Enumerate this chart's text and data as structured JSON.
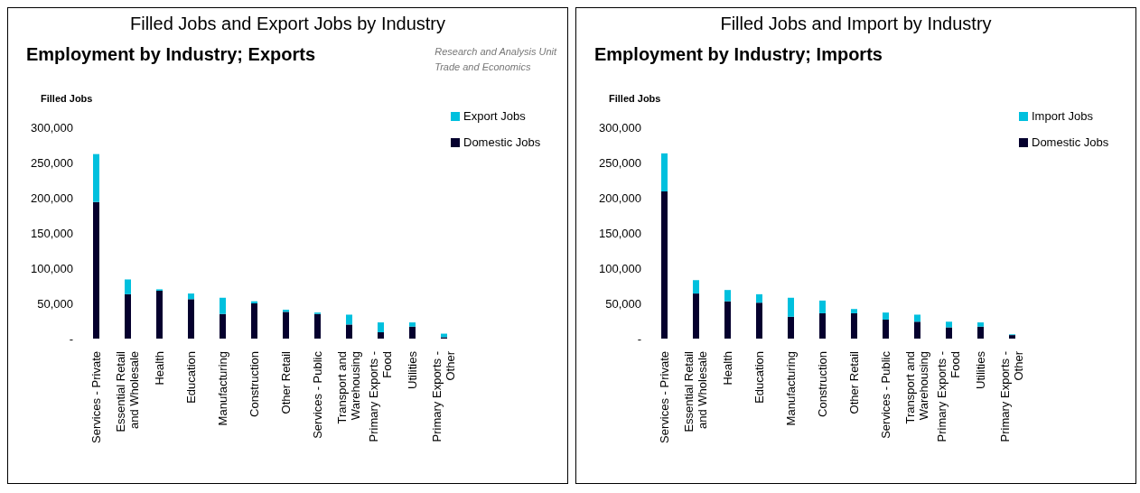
{
  "chart_data": [
    {
      "type": "bar",
      "title": "Filled Jobs and Export Jobs by Industry",
      "subtitle": "Employment by Industry; Exports",
      "annotations": [
        "Research and Analysis Unit\nTrade and Economics"
      ],
      "ylabel": "Filled Jobs",
      "stacked": true,
      "legend": "top right",
      "grid": false,
      "categories": [
        "Services - Private",
        "Essential Retail and Wholesale",
        "Health",
        "Education",
        "Manufacturing",
        "Construction",
        "Other Retail",
        "Services - Public",
        "Transport and Warehousing",
        "Primary Exports - Food",
        "Utilities",
        "Primary Exports - Other"
      ],
      "series": [
        {
          "name": "Domestic Jobs",
          "color": "#05002e",
          "values": [
            194000,
            63000,
            68000,
            56000,
            35000,
            50000,
            38000,
            35000,
            20000,
            9000,
            17000,
            2000
          ]
        },
        {
          "name": "Export Jobs",
          "color": "#00c0de",
          "values": [
            68000,
            21000,
            2000,
            8000,
            23000,
            3000,
            3000,
            2000,
            14000,
            14000,
            6000,
            5000
          ]
        }
      ],
      "ylim": [
        0,
        300000
      ],
      "yticks": [
        {
          "value": 0,
          "label": "-"
        },
        {
          "value": 50000,
          "label": "50,000"
        },
        {
          "value": 100000,
          "label": "100,000"
        },
        {
          "value": 150000,
          "label": "150,000"
        },
        {
          "value": 200000,
          "label": "200,000"
        },
        {
          "value": 250000,
          "label": "250,000"
        },
        {
          "value": 300000,
          "label": "300,000"
        }
      ]
    },
    {
      "type": "bar",
      "title": "Filled Jobs and Import by Industry",
      "subtitle": "Employment by Industry; Imports",
      "ylabel": "Filled Jobs",
      "stacked": true,
      "legend": "top right",
      "grid": false,
      "categories": [
        "Services - Private",
        "Essential Retail and Wholesale",
        "Health",
        "Education",
        "Manufacturing",
        "Construction",
        "Other Retail",
        "Services - Public",
        "Transport and Warehousing",
        "Primary Exports - Food",
        "Utilities",
        "Primary Exports - Other"
      ],
      "series": [
        {
          "name": "Domestic Jobs",
          "color": "#05002e",
          "values": [
            209000,
            64000,
            53000,
            51000,
            31000,
            36000,
            36000,
            27000,
            24000,
            16000,
            17000,
            5000
          ]
        },
        {
          "name": "Import Jobs",
          "color": "#00c0de",
          "values": [
            54000,
            19000,
            16000,
            12000,
            27000,
            18000,
            6000,
            10000,
            10000,
            8000,
            6000,
            1000
          ]
        }
      ],
      "ylim": [
        0,
        300000
      ],
      "yticks": [
        {
          "value": 0,
          "label": "-"
        },
        {
          "value": 50000,
          "label": "50,000"
        },
        {
          "value": 100000,
          "label": "100,000"
        },
        {
          "value": 150000,
          "label": "150,000"
        },
        {
          "value": 200000,
          "label": "200,000"
        },
        {
          "value": 250000,
          "label": "250,000"
        },
        {
          "value": 300000,
          "label": "300,000"
        }
      ]
    }
  ]
}
